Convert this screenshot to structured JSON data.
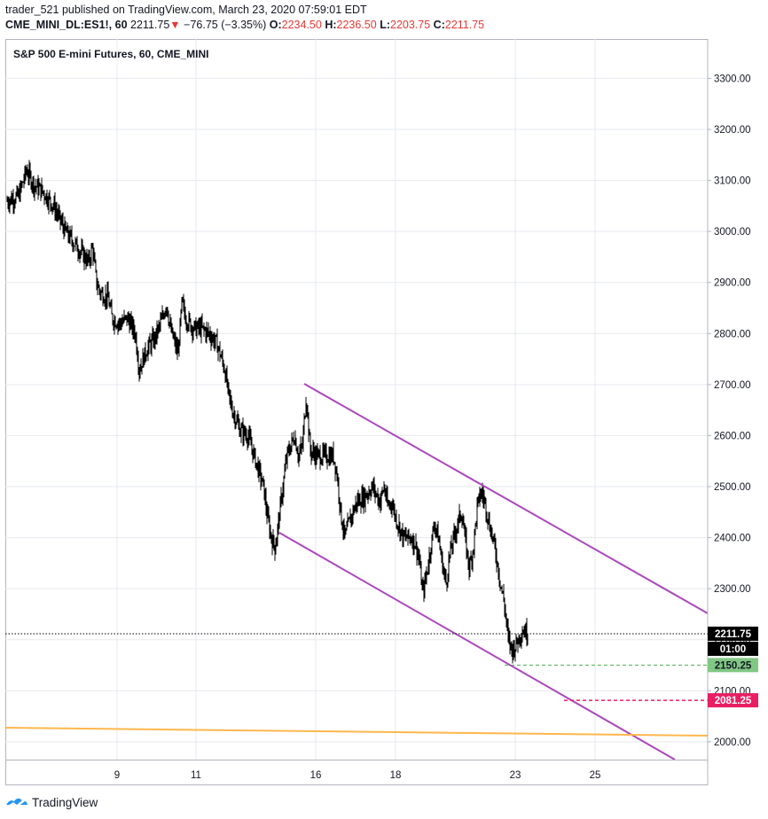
{
  "header": {
    "publisher": "trader_521",
    "published_text": "published on TradingView.com, March 23, 2020 07:59:01 EDT",
    "symbol": "CME_MINI_DL:ES1!, 60",
    "last": "2211.75",
    "change_arrow": "▼",
    "change": "−76.75 (−3.35%)",
    "o_label": "O:",
    "o_value": "2234.50",
    "h_label": "H:",
    "h_value": "2236.50",
    "l_label": "L:",
    "l_value": "2203.75",
    "c_label": "C:",
    "c_value": "2211.75"
  },
  "footer": {
    "brand": "TradingView",
    "logo_icon": "tradingview-logo-icon"
  },
  "colors": {
    "grid": "#e6e9ef",
    "bar": "#000000",
    "channel": "#ab47bc",
    "support_line": "#ffb74d",
    "green_level": "#4caf50",
    "green_tag": "#81c784",
    "red_level": "#e91e63",
    "price_tag": "#000000"
  },
  "chart_data": {
    "type": "ohlc",
    "title": "S&P 500 E-mini Futures, 60, CME_MINI",
    "interval": "60",
    "x_tick_labels": [
      "9",
      "11",
      "16",
      "18",
      "23",
      "25"
    ],
    "y_ticks": [
      2000,
      2100,
      2200,
      2300,
      2400,
      2500,
      2600,
      2700,
      2800,
      2900,
      3000,
      3100,
      3200,
      3300
    ],
    "y_tick_labels": [
      "2000.00",
      "2100.00",
      "2200.00",
      "2300.00",
      "2400.00",
      "2500.00",
      "2600.00",
      "2700.00",
      "2800.00",
      "2900.00",
      "3000.00",
      "3100.00",
      "3200.00",
      "3300.00"
    ],
    "ylim": [
      1965,
      3365
    ],
    "grid": true,
    "price_path": [
      [
        0,
        3060
      ],
      [
        3,
        3070
      ],
      [
        5,
        3120
      ],
      [
        7,
        3090
      ],
      [
        9,
        3080
      ],
      [
        12,
        3050
      ],
      [
        15,
        3000
      ],
      [
        18,
        2970
      ],
      [
        21,
        2940
      ],
      [
        22,
        2970
      ],
      [
        23,
        2900
      ],
      [
        24,
        2880
      ],
      [
        26,
        2870
      ],
      [
        27,
        2830
      ],
      [
        29,
        2820
      ],
      [
        31,
        2830
      ],
      [
        33,
        2800
      ],
      [
        34,
        2730
      ],
      [
        35,
        2750
      ],
      [
        36,
        2770
      ],
      [
        38,
        2790
      ],
      [
        40,
        2830
      ],
      [
        41,
        2860
      ],
      [
        42,
        2810
      ],
      [
        44,
        2760
      ],
      [
        45,
        2860
      ],
      [
        46,
        2830
      ],
      [
        48,
        2810
      ],
      [
        50,
        2810
      ],
      [
        52,
        2800
      ],
      [
        54,
        2780
      ],
      [
        56,
        2730
      ],
      [
        57,
        2680
      ],
      [
        58,
        2650
      ],
      [
        60,
        2610
      ],
      [
        62,
        2600
      ],
      [
        64,
        2550
      ],
      [
        66,
        2500
      ],
      [
        67,
        2440
      ],
      [
        68,
        2400
      ],
      [
        69,
        2380
      ],
      [
        70,
        2440
      ],
      [
        71,
        2500
      ],
      [
        72,
        2560
      ],
      [
        74,
        2600
      ],
      [
        75,
        2560
      ],
      [
        76,
        2580
      ],
      [
        77,
        2680
      ],
      [
        78,
        2570
      ],
      [
        80,
        2560
      ],
      [
        82,
        2560
      ],
      [
        84,
        2560
      ],
      [
        85,
        2520
      ],
      [
        86,
        2440
      ],
      [
        87,
        2400
      ],
      [
        88,
        2430
      ],
      [
        90,
        2470
      ],
      [
        92,
        2480
      ],
      [
        94,
        2500
      ],
      [
        96,
        2470
      ],
      [
        97,
        2500
      ],
      [
        98,
        2460
      ],
      [
        99,
        2470
      ],
      [
        100,
        2440
      ],
      [
        102,
        2400
      ],
      [
        104,
        2400
      ],
      [
        105,
        2390
      ],
      [
        106,
        2360
      ],
      [
        107,
        2290
      ],
      [
        108,
        2330
      ],
      [
        109,
        2380
      ],
      [
        110,
        2430
      ],
      [
        111,
        2400
      ],
      [
        112,
        2350
      ],
      [
        113,
        2310
      ],
      [
        114,
        2370
      ],
      [
        115,
        2400
      ],
      [
        116,
        2430
      ],
      [
        117,
        2450
      ],
      [
        118,
        2390
      ],
      [
        119,
        2340
      ],
      [
        120,
        2380
      ],
      [
        121,
        2460
      ],
      [
        122,
        2490
      ],
      [
        123,
        2470
      ],
      [
        124,
        2430
      ],
      [
        125,
        2400
      ],
      [
        126,
        2360
      ],
      [
        127,
        2310
      ],
      [
        128,
        2270
      ],
      [
        129,
        2200
      ],
      [
        130,
        2180
      ],
      [
        131,
        2190
      ],
      [
        132,
        2210
      ],
      [
        133,
        2220
      ],
      [
        134,
        2210
      ]
    ],
    "last_price": 2211.75,
    "levels": [
      {
        "name": "green-level",
        "value": 2150.25,
        "label": "2150.25"
      },
      {
        "name": "red-level",
        "value": 2081.25,
        "label": "2081.25"
      }
    ],
    "price_tag": {
      "value": "2211.75",
      "countdown": "01:00"
    }
  }
}
